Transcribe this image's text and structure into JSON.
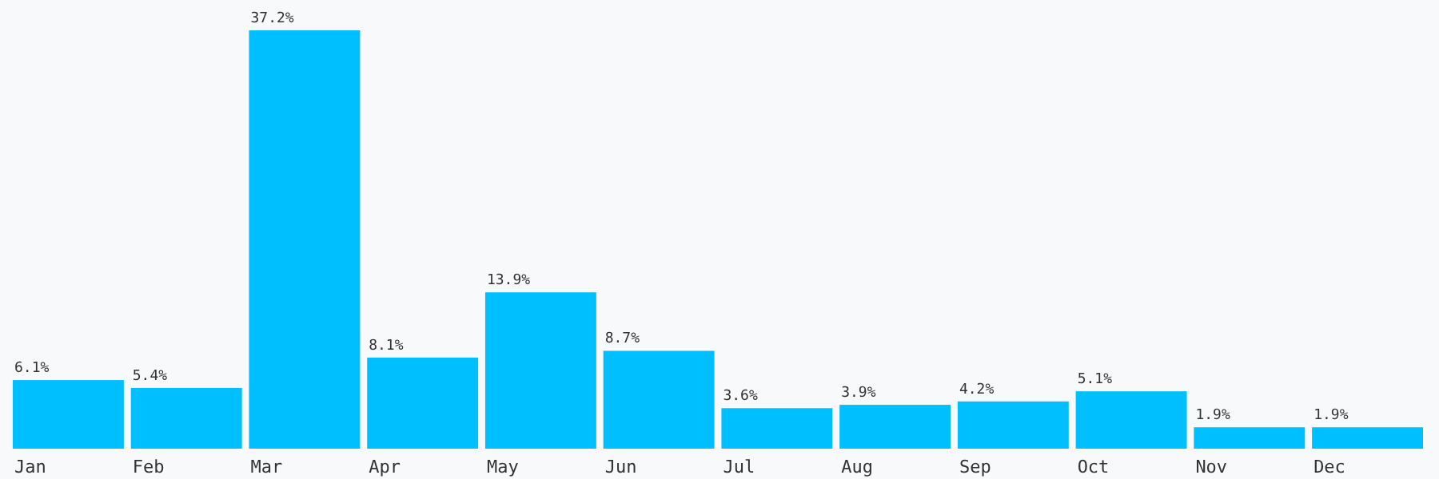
{
  "chart_data": {
    "type": "bar",
    "categories": [
      "Jan",
      "Feb",
      "Mar",
      "Apr",
      "May",
      "Jun",
      "Jul",
      "Aug",
      "Sep",
      "Oct",
      "Nov",
      "Dec"
    ],
    "values": [
      6.1,
      5.4,
      37.2,
      8.1,
      13.9,
      8.7,
      3.6,
      3.9,
      4.2,
      5.1,
      1.9,
      1.9
    ],
    "value_labels": [
      "6.1%",
      "5.4%",
      "37.2%",
      "8.1%",
      "13.9%",
      "8.7%",
      "3.6%",
      "3.9%",
      "4.2%",
      "5.1%",
      "1.9%",
      "1.9%"
    ],
    "color": "#00bfff"
  }
}
